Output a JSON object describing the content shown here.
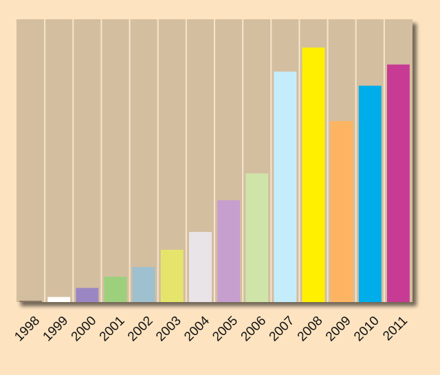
{
  "chart_data": {
    "type": "bar",
    "title": "",
    "xlabel": "",
    "ylabel": "",
    "ylim": [
      0,
      100
    ],
    "grid": false,
    "legend": "none",
    "categories": [
      "1998",
      "1999",
      "2000",
      "2001",
      "2002",
      "2003",
      "2004",
      "2005",
      "2006",
      "2007",
      "2008",
      "2009",
      "2010",
      "2011"
    ],
    "values": [
      0.5,
      1.8,
      5,
      9,
      12.4,
      18.5,
      24.8,
      36,
      45.5,
      81.5,
      90,
      64,
      76.5,
      84
    ],
    "colors": [
      "#8c7a66",
      "#ffffff",
      "#9b86c4",
      "#9dd07d",
      "#9ec0cf",
      "#e6e56b",
      "#e8e4e8",
      "#c79fcf",
      "#cfe4a9",
      "#c5ecfb",
      "#fff000",
      "#fdb462",
      "#00adeb",
      "#c83b94"
    ]
  },
  "style": {
    "page_background": "#fde3c0",
    "plot_background": "#d4bea0",
    "separator_color": "#f5e6cc",
    "shadow_color": "#3a2d24"
  }
}
